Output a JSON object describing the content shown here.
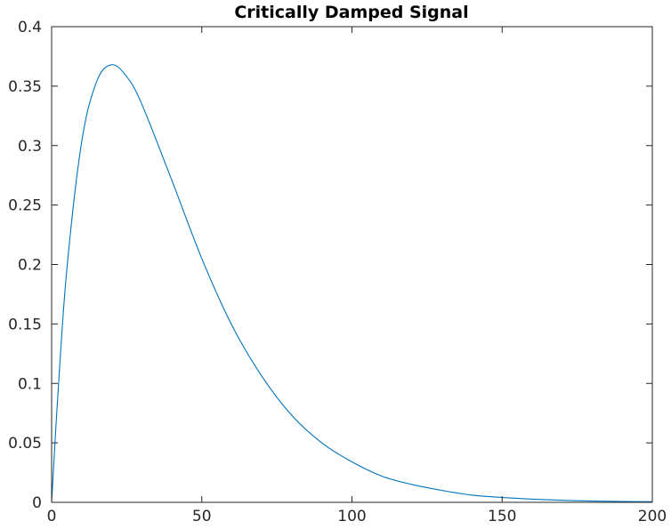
{
  "chart_data": {
    "type": "line",
    "title": "Critically Damped Signal",
    "xlabel": "",
    "ylabel": "",
    "xlim": [
      0,
      200
    ],
    "ylim": [
      0,
      0.4
    ],
    "x_ticks": [
      "0",
      "50",
      "100",
      "150",
      "200"
    ],
    "y_ticks": [
      "0",
      "0.05",
      "0.1",
      "0.15",
      "0.2",
      "0.25",
      "0.3",
      "0.35",
      "0.4"
    ],
    "grid": false,
    "legend": "none",
    "series": [
      {
        "color": "#0072bd",
        "x": [
          0,
          2,
          5,
          10,
          15,
          20,
          25,
          30,
          40,
          50,
          60,
          70,
          80,
          90,
          100,
          110,
          120,
          130,
          140,
          150,
          160,
          170,
          180,
          190,
          200
        ],
        "y": [
          0,
          0.087,
          0.194,
          0.303,
          0.354,
          0.368,
          0.358,
          0.335,
          0.271,
          0.205,
          0.149,
          0.106,
          0.073,
          0.05,
          0.034,
          0.022,
          0.015,
          0.01,
          0.006,
          0.0041,
          0.0027,
          0.0017,
          0.0011,
          0.0007,
          0.0005
        ]
      }
    ]
  }
}
